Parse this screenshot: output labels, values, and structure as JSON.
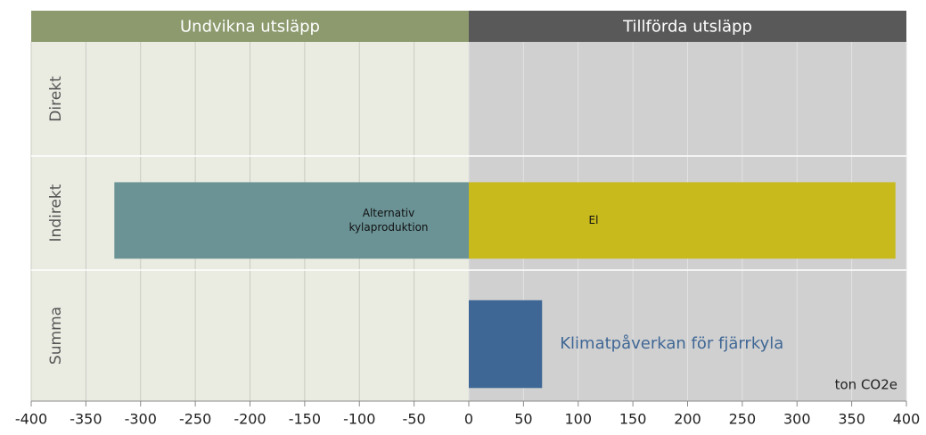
{
  "chart_data": {
    "type": "bar",
    "orientation": "horizontal",
    "region_labels": [
      "Undvikna utsläpp",
      "Tillförda utsläpp"
    ],
    "region_colors": [
      "#8c9a6e",
      "#595959"
    ],
    "region_backgrounds": [
      "#eaece2",
      "#d0d0d0"
    ],
    "categories": [
      "Direkt",
      "Indirekt",
      "Summa"
    ],
    "series": [
      {
        "name": "Alternativ kylaproduktion",
        "color": "#6b9396",
        "values": [
          null,
          -324,
          null
        ]
      },
      {
        "name": "El",
        "color": "#c8b91c",
        "values": [
          null,
          390,
          null
        ]
      },
      {
        "name": "Klimatpåverkan för fjärrkyla",
        "color": "#3f6795",
        "values": [
          null,
          null,
          67
        ]
      }
    ],
    "x_label": "ton CO2e",
    "xlim": [
      -400,
      400
    ],
    "xticks": [
      -400,
      -350,
      -300,
      -250,
      -200,
      -150,
      -100,
      -50,
      0,
      50,
      100,
      150,
      200,
      250,
      300,
      350,
      400
    ],
    "grid": true
  }
}
